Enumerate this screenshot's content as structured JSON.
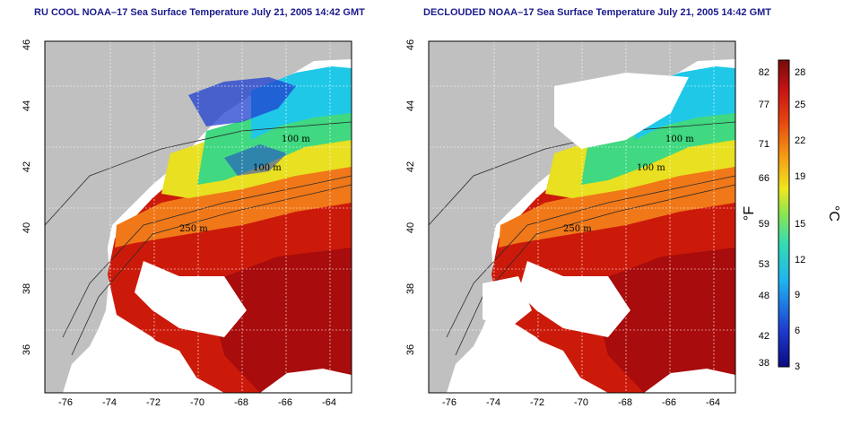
{
  "titles": {
    "left": "RU COOL NOAA–17 Sea Surface Temperature July 21, 2005 14:42 GMT",
    "right": "DECLOUDED NOAA–17 Sea Surface Temperature July 21, 2005 14:42 GMT"
  },
  "axes": {
    "lon_ticks": [
      "-76",
      "-74",
      "-72",
      "-70",
      "-68",
      "-66",
      "-64"
    ],
    "lat_ticks": [
      "46",
      "44",
      "42",
      "40",
      "38",
      "36"
    ]
  },
  "contours": {
    "label_100": "100 m",
    "label_250": "250 m"
  },
  "colorbar": {
    "fahrenheit_ticks": [
      "82",
      "77",
      "71",
      "66",
      "59",
      "53",
      "48",
      "42",
      "38"
    ],
    "celsius_ticks": [
      "28",
      "25",
      "22",
      "19",
      "15",
      "12",
      "9",
      "6",
      "3"
    ],
    "fahrenheit_unit": "°F",
    "celsius_unit": "°C"
  },
  "colors": {
    "land": "#c0c0c0",
    "cloud": "#ffffff",
    "warm": "#cc1a0a",
    "hot": "#a80c0c",
    "orange": "#f07818",
    "yellow": "#e8e020",
    "green": "#40d880",
    "cyan": "#20c8e8",
    "blue": "#2040d0",
    "title": "#1a1a8c"
  }
}
